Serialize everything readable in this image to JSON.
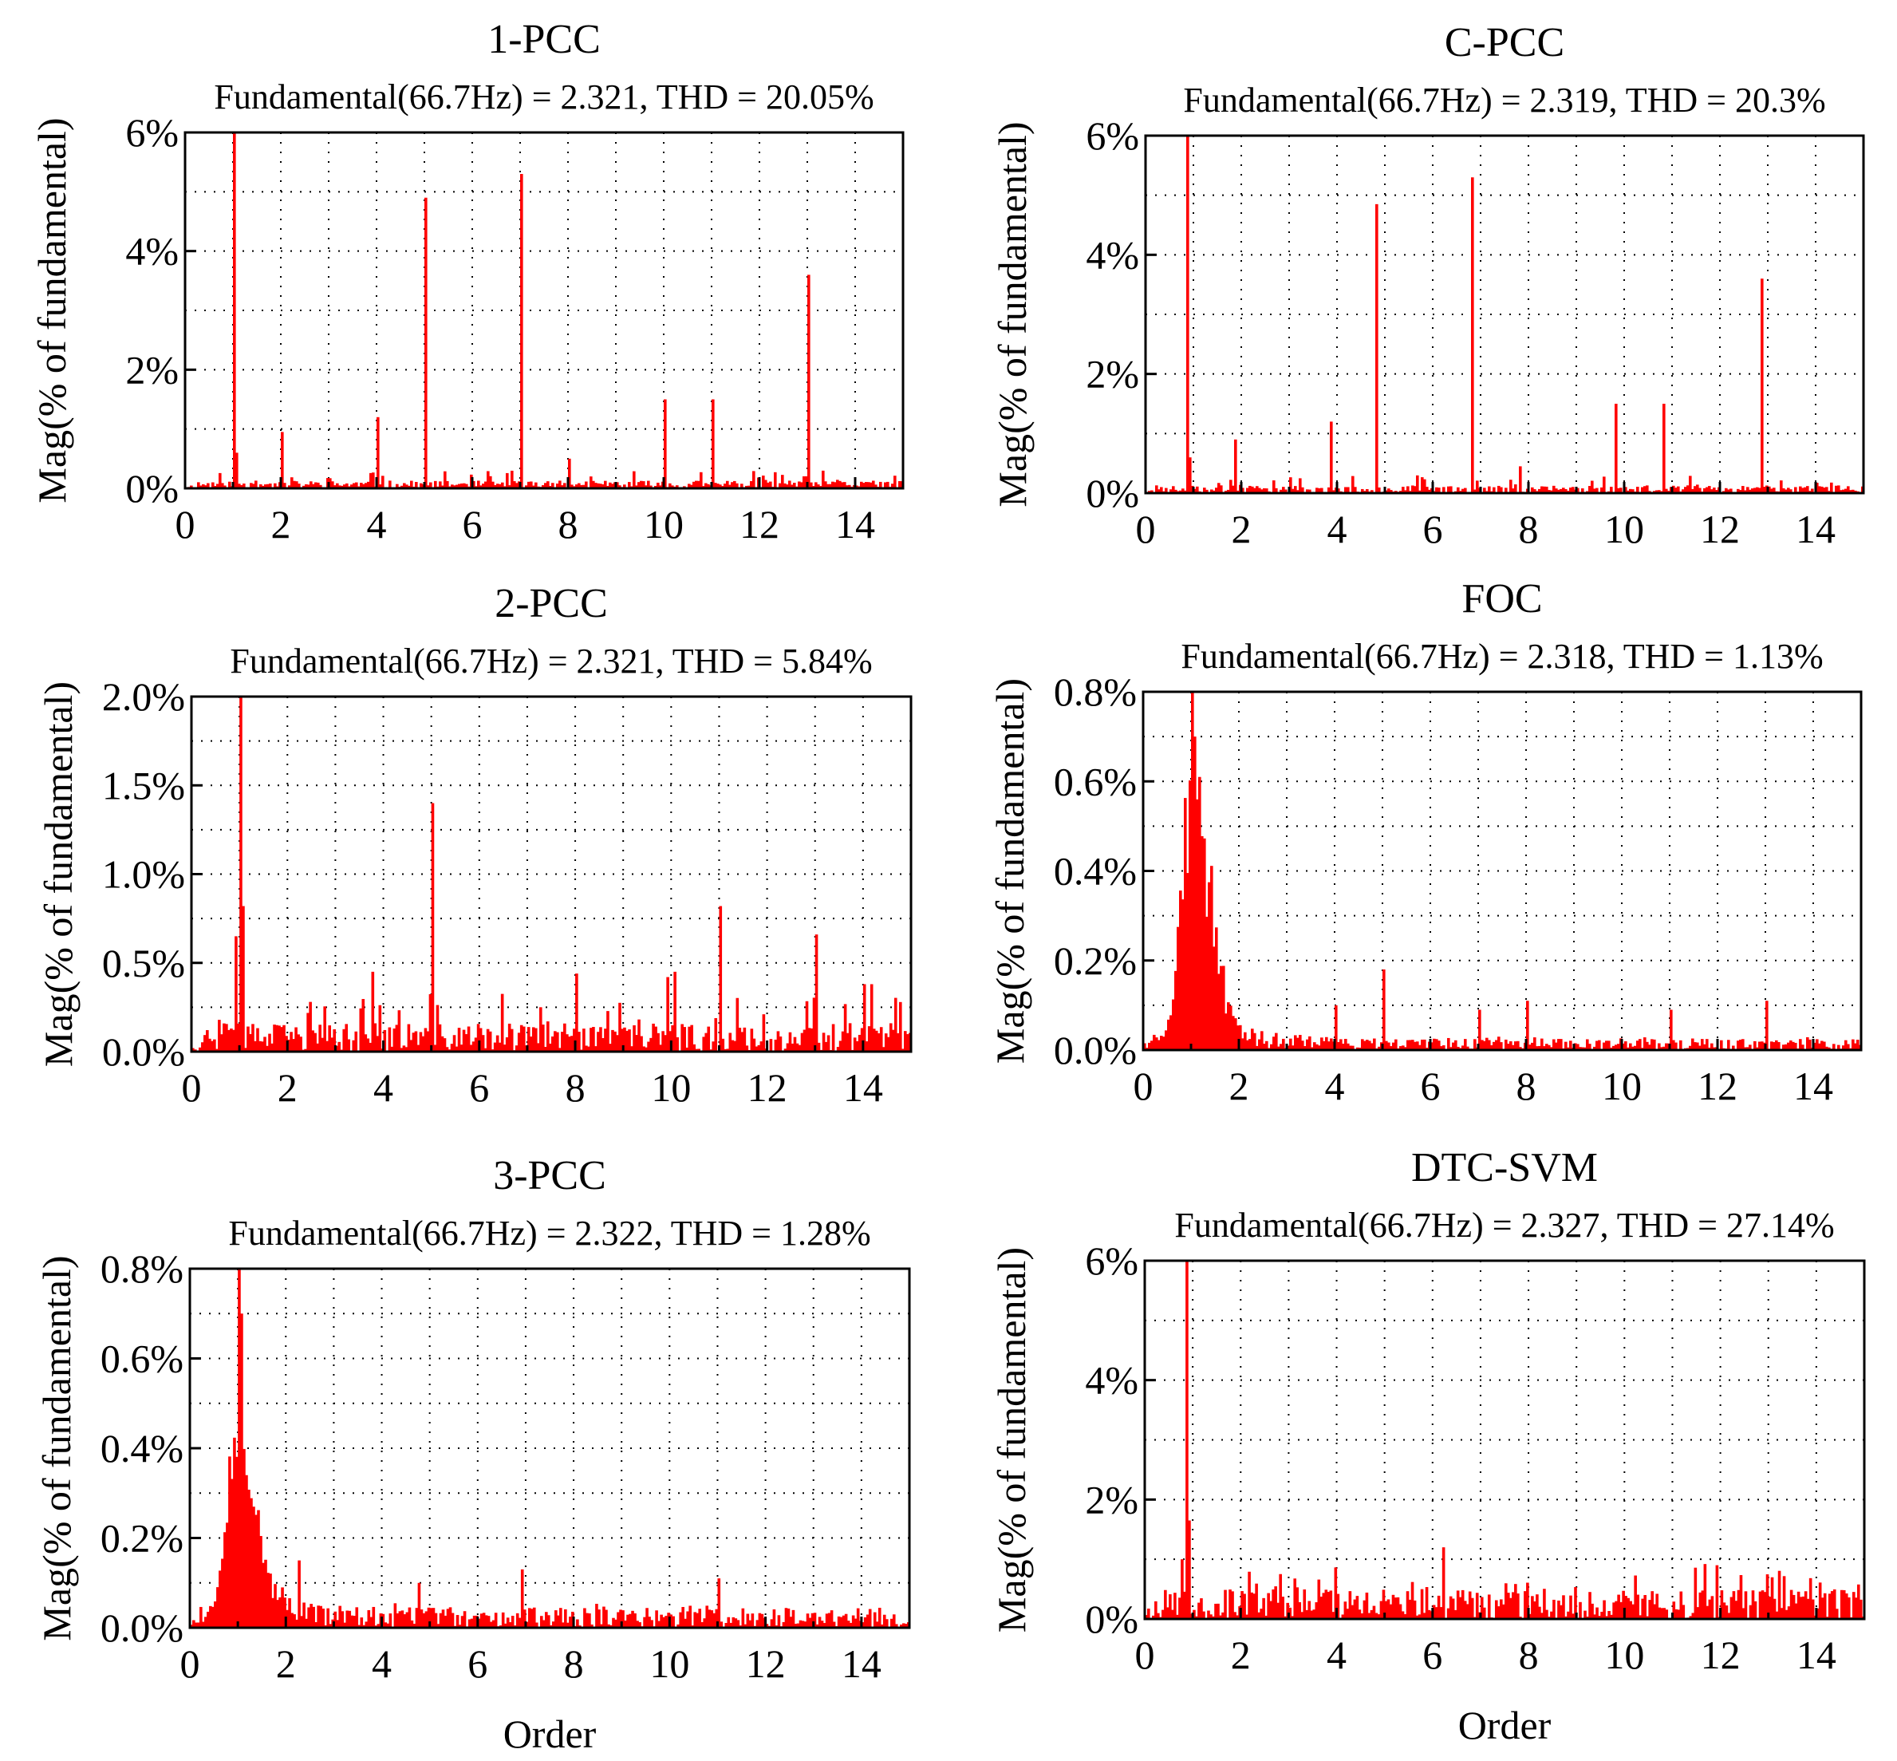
{
  "figure": {
    "x_axis_label": "Order"
  },
  "chart_data": [
    {
      "type": "bar",
      "title": "1-PCC",
      "subtitle": "Fundamental(66.7Hz) = 2.321, THD = 20.05%",
      "xlabel": "",
      "ylabel": "Mag(% of fundamental)",
      "xlim": [
        0,
        15
      ],
      "ylim": [
        0,
        6
      ],
      "xticks": [
        0,
        2,
        4,
        6,
        8,
        10,
        12,
        14
      ],
      "yticks": [
        0,
        2,
        4,
        6
      ],
      "ytick_labels": [
        "0%",
        "2%",
        "4%",
        "6%"
      ],
      "grid": true,
      "noise": {
        "level": 0.13,
        "peak_level": 0.3,
        "seed": 11
      },
      "peaks": [
        [
          1,
          6.0
        ],
        [
          1.08,
          0.6
        ],
        [
          2,
          0.95
        ],
        [
          4,
          1.2
        ],
        [
          5,
          4.9
        ],
        [
          7,
          5.3
        ],
        [
          8,
          0.5
        ],
        [
          10,
          1.5
        ],
        [
          11,
          1.5
        ],
        [
          13,
          3.6
        ]
      ]
    },
    {
      "type": "bar",
      "title": "C-PCC",
      "subtitle": "Fundamental(66.7Hz) = 2.319, THD = 20.3%",
      "xlabel": "",
      "ylabel": "Mag(% of fundamental)",
      "xlim": [
        0,
        15
      ],
      "ylim": [
        0,
        6
      ],
      "xticks": [
        0,
        2,
        4,
        6,
        8,
        10,
        12,
        14
      ],
      "yticks": [
        0,
        2,
        4,
        6
      ],
      "ytick_labels": [
        "0%",
        "2%",
        "4%",
        "6%"
      ],
      "grid": true,
      "noise": {
        "level": 0.13,
        "peak_level": 0.3,
        "seed": 23
      },
      "peaks": [
        [
          0.85,
          6.0
        ],
        [
          0.95,
          0.6
        ],
        [
          1.85,
          0.9
        ],
        [
          3.85,
          1.2
        ],
        [
          4.85,
          4.85
        ],
        [
          6.85,
          5.3
        ],
        [
          7.85,
          0.45
        ],
        [
          9.85,
          1.5
        ],
        [
          10.85,
          1.5
        ],
        [
          12.85,
          3.6
        ]
      ]
    },
    {
      "type": "bar",
      "title": "2-PCC",
      "subtitle": "Fundamental(66.7Hz) = 2.321, THD = 5.84%",
      "xlabel": "",
      "ylabel": "Mag(% of fundamental)",
      "xlim": [
        0,
        15
      ],
      "ylim": [
        0,
        2
      ],
      "xticks": [
        0,
        2,
        4,
        6,
        8,
        10,
        12,
        14
      ],
      "yticks": [
        0,
        0.5,
        1,
        1.5,
        2
      ],
      "ytick_labels": [
        "0.0%",
        "0.5%",
        "1.0%",
        "1.5%",
        "2.0%"
      ],
      "grid": true,
      "noise": {
        "level": 0.16,
        "peak_level": 0.33,
        "seed": 37
      },
      "peaks": [
        [
          1,
          2.0
        ],
        [
          1.08,
          0.82
        ],
        [
          0.95,
          0.65
        ],
        [
          3.75,
          0.45
        ],
        [
          5,
          1.4
        ],
        [
          8,
          0.44
        ],
        [
          9.9,
          0.42
        ],
        [
          10.05,
          0.45
        ],
        [
          11,
          0.82
        ],
        [
          13,
          0.66
        ],
        [
          14.0,
          0.38
        ],
        [
          14.2,
          0.38
        ]
      ]
    },
    {
      "type": "bar",
      "title": "FOC",
      "subtitle": "Fundamental(66.7Hz) = 2.318, THD = 1.13%",
      "xlabel": "",
      "ylabel": "Mag(% of fundamental)",
      "xlim": [
        0,
        15
      ],
      "ylim": [
        0,
        0.8
      ],
      "xticks": [
        0,
        2,
        4,
        6,
        8,
        10,
        12,
        14
      ],
      "yticks": [
        0,
        0.2,
        0.4,
        0.6,
        0.8
      ],
      "ytick_labels": [
        "0.0%",
        "0.2%",
        "0.4%",
        "0.6%",
        "0.8%"
      ],
      "grid": true,
      "noise": {
        "level": 0.025,
        "peak_level": 0.03,
        "seed": 41
      },
      "envelope": {
        "center": 1.0,
        "amp": 0.5,
        "width_left": 0.28,
        "width_right": 0.55,
        "tail": 0.09,
        "tail_decay": 1.2
      },
      "peaks": [
        [
          1.0,
          0.8
        ],
        [
          1.08,
          0.7
        ],
        [
          4,
          0.1
        ],
        [
          5,
          0.18
        ],
        [
          7,
          0.09
        ],
        [
          8,
          0.11
        ],
        [
          11,
          0.09
        ],
        [
          13,
          0.11
        ]
      ]
    },
    {
      "type": "bar",
      "title": "3-PCC",
      "subtitle": "Fundamental(66.7Hz) = 2.322, THD = 1.28%",
      "xlabel": "Order",
      "ylabel": "Mag(% of fundamental)",
      "xlim": [
        0,
        15
      ],
      "ylim": [
        0,
        0.8
      ],
      "xticks": [
        0,
        2,
        4,
        6,
        8,
        10,
        12,
        14
      ],
      "yticks": [
        0,
        0.2,
        0.4,
        0.6,
        0.8
      ],
      "ytick_labels": [
        "0.0%",
        "0.2%",
        "0.4%",
        "0.6%",
        "0.8%"
      ],
      "grid": true,
      "noise": {
        "level": 0.045,
        "peak_level": 0.06,
        "seed": 53
      },
      "envelope": {
        "center": 1.0,
        "amp": 0.35,
        "width_left": 0.35,
        "width_right": 0.5,
        "tail": 0.08,
        "tail_decay": 1.0
      },
      "peaks": [
        [
          1.0,
          0.8
        ],
        [
          1.08,
          0.7
        ],
        [
          1.2,
          0.34
        ],
        [
          2.3,
          0.15
        ],
        [
          4.8,
          0.1
        ],
        [
          6.9,
          0.13
        ],
        [
          11.0,
          0.11
        ]
      ]
    },
    {
      "type": "bar",
      "title": "DTC-SVM",
      "subtitle": "Fundamental(66.7Hz) = 2.327, THD = 27.14%",
      "xlabel": "Order",
      "ylabel": "Mag(% of fundamental)",
      "xlim": [
        0,
        15
      ],
      "ylim": [
        0,
        6
      ],
      "xticks": [
        0,
        2,
        4,
        6,
        8,
        10,
        12,
        14
      ],
      "yticks": [
        0,
        2,
        4,
        6
      ],
      "ytick_labels": [
        "0%",
        "2%",
        "4%",
        "6%"
      ],
      "grid": true,
      "noise": {
        "level": 0.5,
        "peak_level": 0.9,
        "seed": 67
      },
      "peaks": [
        [
          0.85,
          6.0
        ],
        [
          0.95,
          1.65
        ],
        [
          0.75,
          1.0
        ],
        [
          6.2,
          1.2
        ],
        [
          11.7,
          0.92
        ],
        [
          11.9,
          0.9
        ]
      ]
    }
  ]
}
